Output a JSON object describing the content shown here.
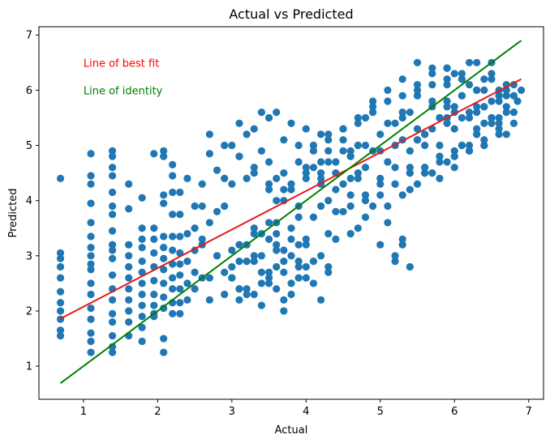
{
  "chart_data": {
    "type": "scatter",
    "title": "Actual vs Predicted",
    "xlabel": "Actual",
    "ylabel": "Predicted",
    "xlim": [
      0.4,
      7.2
    ],
    "ylim": [
      0.4,
      7.15
    ],
    "xticks": [
      1,
      2,
      3,
      4,
      5,
      6,
      7
    ],
    "yticks": [
      1,
      2,
      3,
      4,
      5,
      6,
      7
    ],
    "grid": false,
    "colors": {
      "points": "#1f77b4",
      "best_fit": "#e41a1c",
      "identity": "#008000"
    },
    "annotations": [
      {
        "text": "Line of best fit",
        "x": 1.0,
        "y": 6.5,
        "color": "#ff0000"
      },
      {
        "text": "Line of identity",
        "x": 1.0,
        "y": 6.0,
        "color": "#008000"
      }
    ],
    "lines": [
      {
        "label": "Line of best fit",
        "x": [
          0.69,
          6.9
        ],
        "y": [
          1.86,
          6.2
        ],
        "color": "#e41a1c"
      },
      {
        "label": "Line of identity",
        "x": [
          0.69,
          6.9
        ],
        "y": [
          0.69,
          6.9
        ],
        "color": "#008000"
      }
    ],
    "series": [
      {
        "x": [
          0.69,
          0.69,
          0.69,
          0.69,
          0.69,
          0.69,
          0.69,
          0.69,
          0.69,
          0.69,
          0.69,
          1.1,
          1.1,
          1.1,
          1.1,
          1.1,
          1.1,
          1.1,
          1.1,
          1.1,
          1.1,
          1.1,
          1.1,
          1.1,
          1.1,
          1.1,
          1.1,
          1.1,
          1.39,
          1.39,
          1.39,
          1.39,
          1.39,
          1.39,
          1.39,
          1.39,
          1.39,
          1.39,
          1.39,
          1.39,
          1.39,
          1.39,
          1.39,
          1.39,
          1.39,
          1.39,
          1.39,
          1.61,
          1.61,
          1.61,
          1.61,
          1.61,
          1.61,
          1.61,
          1.61,
          1.61,
          1.61,
          1.61,
          1.79,
          1.79,
          1.79,
          1.79,
          1.79,
          1.79,
          1.79,
          1.79,
          1.79,
          1.79,
          1.79,
          1.79,
          1.95,
          1.95,
          1.95,
          1.95,
          1.95,
          1.95,
          1.95,
          1.95,
          1.95,
          1.95,
          2.08,
          2.08,
          2.08,
          2.08,
          2.08,
          2.08,
          2.08,
          2.08,
          2.08,
          2.08,
          2.08,
          2.08,
          2.08,
          2.2,
          2.2,
          2.2,
          2.2,
          2.2,
          2.2,
          2.2,
          2.2,
          2.2,
          2.2,
          2.2,
          2.3,
          2.3,
          2.3,
          2.3,
          2.3,
          2.3,
          2.3,
          2.3,
          2.3,
          2.4,
          2.4,
          2.4,
          2.4,
          2.4,
          2.5,
          2.5,
          2.5,
          2.5,
          2.5,
          2.6,
          2.6,
          2.6,
          2.6,
          2.7,
          2.7,
          2.7,
          2.8,
          2.8,
          2.8,
          2.9,
          2.9,
          2.9,
          3.0,
          3.0,
          3.0,
          3.0,
          3.1,
          3.1,
          3.1,
          3.1,
          3.2,
          3.2,
          3.2,
          3.3,
          3.3,
          3.3,
          3.3,
          3.4,
          3.4,
          3.4,
          3.5,
          3.5,
          3.5,
          3.5,
          3.6,
          3.6,
          3.6,
          3.7,
          3.7,
          3.7,
          3.8,
          3.8,
          3.8,
          3.9,
          3.9,
          4.0,
          4.0,
          4.0,
          4.1,
          4.1,
          4.2,
          4.2,
          4.3,
          4.3,
          4.4,
          4.5,
          4.6,
          4.7,
          4.8,
          3.0,
          3.1,
          3.2,
          3.3,
          3.4,
          3.5,
          3.6,
          3.7,
          3.8,
          3.9,
          3.2,
          3.4,
          3.6,
          3.8,
          3.7,
          3.5,
          3.3,
          3.1,
          3.9,
          4.0,
          2.6,
          2.8,
          3.0,
          3.2,
          3.4,
          2.7,
          2.9,
          3.1,
          3.3,
          3.5,
          3.6,
          3.7,
          3.4,
          3.6,
          3.8,
          4.0,
          4.2,
          4.4,
          3.9,
          4.1,
          4.3,
          4.0,
          4.1,
          4.2,
          4.3,
          4.4,
          4.5,
          4.6,
          4.7,
          4.8,
          4.9,
          5.0,
          5.1,
          5.2,
          5.3,
          5.4,
          5.5,
          5.6,
          5.7,
          5.8,
          5.9,
          6.0,
          6.1,
          6.2,
          6.3,
          6.4,
          6.5,
          6.6,
          6.7,
          4.2,
          4.4,
          4.6,
          4.8,
          5.0,
          5.2,
          5.4,
          5.6,
          5.8,
          6.0,
          6.2,
          6.4,
          6.6,
          4.3,
          4.7,
          5.1,
          5.5,
          5.9,
          6.3,
          4.5,
          4.7,
          4.9,
          5.1,
          5.3,
          5.5,
          5.7,
          5.9,
          6.1,
          6.3,
          6.5,
          4.6,
          5.0,
          5.4,
          5.8,
          6.2,
          6.6,
          4.1,
          4.3,
          4.5,
          4.7,
          4.9,
          5.1,
          5.3,
          5.5,
          5.7,
          5.9,
          6.1,
          6.3,
          6.5,
          6.7,
          4.4,
          4.8,
          5.2,
          5.6,
          6.0,
          6.4,
          4.2,
          4.6,
          5.0,
          5.4,
          5.8,
          6.2,
          6.6,
          5.0,
          5.2,
          5.4,
          5.6,
          5.8,
          6.0,
          6.2,
          6.4,
          6.6,
          5.1,
          5.3,
          5.5,
          5.7,
          5.9,
          6.1,
          6.3,
          6.5,
          6.7,
          5.3,
          5.5,
          5.7,
          5.9,
          6.1,
          6.3,
          6.5,
          5.4,
          5.6,
          5.8,
          6.0,
          6.2,
          6.4,
          6.6,
          4.9,
          5.1,
          5.3,
          5.5,
          5.7,
          5.9,
          6.1,
          5.2,
          5.6,
          6.0,
          6.4,
          6.8,
          5.5,
          5.7,
          5.9,
          6.1,
          6.3,
          6.5,
          6.7,
          5.6,
          6.0,
          6.4,
          6.8,
          5.8,
          6.2,
          6.6,
          3.5,
          3.7,
          3.9,
          4.1,
          4.3,
          4.5,
          4.7,
          3.6,
          3.8,
          4.0,
          4.2,
          4.4,
          4.6,
          4.8,
          4.5,
          4.7,
          4.9,
          5.1,
          5.3,
          4.6,
          4.8,
          5.0,
          5.2,
          5.4,
          5.3,
          5.2,
          3.7,
          3.9,
          4.1,
          4.3,
          3.6,
          3.8,
          4.0,
          4.2,
          2.7,
          2.9,
          3.1,
          3.3,
          3.5,
          3.7,
          3.9,
          6.0,
          6.2,
          6.4,
          6.6,
          6.8,
          5.9,
          6.1,
          6.3,
          6.5,
          6.7,
          6.85,
          6.9,
          6.8,
          6.7
        ],
        "y": [
          4.4,
          3.05,
          2.95,
          2.8,
          2.6,
          2.35,
          2.15,
          2.0,
          1.85,
          1.65,
          1.55,
          4.85,
          4.45,
          4.3,
          3.95,
          3.6,
          3.35,
          3.0,
          2.75,
          2.5,
          2.3,
          2.05,
          1.85,
          1.6,
          1.45,
          1.25,
          3.15,
          2.85,
          4.9,
          4.8,
          4.6,
          4.45,
          4.15,
          3.9,
          3.75,
          3.45,
          3.2,
          2.95,
          2.65,
          2.4,
          2.2,
          1.95,
          1.8,
          1.55,
          1.35,
          1.25,
          3.1,
          4.3,
          3.85,
          3.2,
          3.0,
          2.8,
          2.6,
          2.4,
          2.2,
          2.0,
          1.8,
          1.55,
          4.05,
          3.5,
          3.3,
          3.15,
          2.9,
          2.7,
          2.5,
          2.3,
          2.1,
          1.9,
          1.7,
          1.45,
          4.85,
          3.5,
          3.3,
          3.05,
          2.8,
          2.55,
          2.3,
          2.1,
          1.9,
          1.95,
          4.9,
          4.8,
          4.1,
          3.95,
          3.35,
          3.15,
          2.95,
          2.75,
          2.5,
          2.25,
          2.05,
          1.5,
          1.25,
          4.65,
          4.45,
          4.15,
          3.75,
          3.35,
          3.1,
          2.85,
          2.6,
          2.4,
          2.15,
          1.95,
          4.15,
          3.75,
          3.35,
          3.05,
          2.85,
          2.65,
          2.4,
          2.15,
          1.95,
          4.4,
          3.4,
          2.9,
          2.5,
          2.2,
          3.9,
          3.5,
          3.1,
          2.7,
          2.4,
          4.3,
          3.9,
          3.3,
          2.6,
          4.85,
          3.6,
          2.2,
          4.55,
          3.8,
          3.0,
          4.4,
          3.9,
          2.7,
          5.0,
          4.3,
          3.1,
          2.6,
          5.4,
          4.8,
          3.2,
          2.4,
          5.2,
          4.4,
          2.9,
          5.3,
          4.6,
          3.4,
          2.3,
          5.6,
          4.9,
          3.0,
          5.5,
          4.7,
          3.6,
          2.5,
          5.6,
          4.4,
          3.2,
          5.1,
          4.2,
          2.7,
          5.4,
          4.3,
          3.3,
          5.0,
          3.9,
          5.3,
          4.5,
          3.3,
          5.0,
          3.7,
          5.2,
          3.9,
          4.7,
          3.4,
          3.8,
          4.3,
          3.9,
          4.5,
          4.1,
          2.6,
          2.9,
          3.2,
          3.0,
          2.7,
          3.3,
          2.8,
          3.1,
          2.5,
          2.9,
          2.3,
          2.5,
          3.4,
          3.0,
          2.2,
          2.6,
          3.5,
          2.4,
          3.2,
          2.8,
          3.2,
          3.0,
          2.8,
          2.4,
          2.1,
          2.6,
          2.3,
          2.2,
          2.9,
          2.7,
          3.6,
          2.0,
          3.4,
          3.1,
          3.5,
          3.2,
          3.0,
          3.3,
          2.8,
          2.9,
          2.7,
          4.6,
          4.9,
          4.4,
          5.1,
          4.7,
          5.3,
          4.8,
          5.0,
          5.5,
          4.9,
          5.2,
          4.7,
          5.4,
          5.1,
          5.6,
          5.3,
          5.0,
          5.7,
          5.5,
          5.8,
          5.6,
          5.9,
          6.1,
          5.7,
          6.0,
          6.2,
          5.8,
          6.0,
          4.3,
          4.5,
          4.8,
          4.6,
          4.9,
          5.0,
          4.6,
          5.2,
          5.0,
          5.3,
          5.5,
          5.7,
          5.9,
          4.0,
          4.4,
          4.7,
          5.1,
          5.4,
          5.6,
          5.3,
          5.5,
          5.7,
          5.4,
          5.9,
          6.0,
          5.8,
          6.2,
          6.3,
          6.0,
          6.5,
          4.1,
          4.3,
          4.5,
          4.8,
          5.0,
          5.2,
          5.0,
          5.2,
          4.9,
          5.4,
          5.6,
          5.8,
          5.5,
          6.1,
          6.3,
          6.4,
          6.2,
          6.5,
          6.3,
          6.1,
          4.2,
          4.0,
          4.3,
          4.6,
          4.9,
          5.0,
          4.7,
          4.4,
          4.1,
          4.5,
          4.7,
          4.9,
          5.4,
          4.4,
          4.6,
          4.2,
          4.5,
          4.8,
          4.6,
          4.9,
          5.1,
          5.3,
          3.9,
          4.1,
          4.3,
          4.5,
          4.7,
          5.0,
          5.2,
          5.5,
          5.7,
          5.6,
          5.9,
          6.1,
          6.4,
          6.2,
          6.0,
          5.8,
          4.9,
          5.2,
          5.5,
          5.7,
          5.6,
          5.4,
          5.9,
          5.8,
          6.0,
          6.2,
          6.5,
          6.4,
          6.1,
          5.9,
          4.3,
          4.5,
          4.8,
          5.0,
          5.6,
          5.1,
          5.3,
          5.5,
          5.0,
          5.2,
          5.4,
          5.6,
          4.6,
          4.8,
          5.7,
          5.9,
          4.4,
          4.9,
          5.5,
          4.3,
          4.5,
          4.7,
          4.6,
          4.9,
          5.1,
          5.0,
          4.0,
          4.2,
          4.4,
          4.5,
          4.7,
          4.9,
          5.0,
          3.8,
          3.5,
          3.9,
          3.6,
          3.3,
          3.4,
          3.7,
          3.2,
          3.0,
          2.8,
          3.2,
          2.9,
          2.9,
          2.6,
          2.5,
          2.8,
          2.4,
          2.3,
          2.6,
          2.2,
          5.2,
          5.0,
          4.8,
          4.5,
          4.2,
          4.0,
          3.7,
          6.3,
          6.5,
          6.2,
          6.0,
          6.1,
          5.7,
          5.5,
          5.3,
          5.5,
          5.9,
          5.8,
          6.0,
          5.4,
          5.2
        ]
      }
    ]
  }
}
